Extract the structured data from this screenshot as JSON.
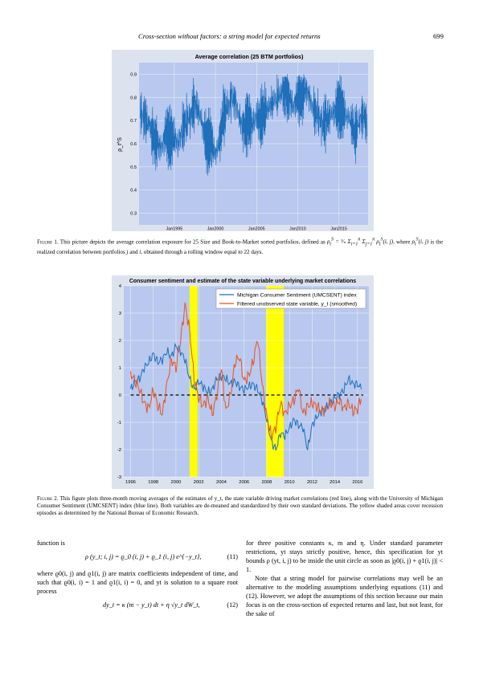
{
  "running_head": {
    "title": "Cross-section without factors: a string model for expected returns",
    "page": "699"
  },
  "chart_data": [
    {
      "type": "line",
      "title": "Average correlation (25 BTM portfolios)",
      "ylabel": "ρ_t^S",
      "ylim": [
        0.25,
        0.95
      ],
      "yticks": [
        "0.3",
        "0.4",
        "0.5",
        "0.6",
        "0.7",
        "0.8",
        "0.9"
      ],
      "xticks": [
        "Jan1995",
        "Jan2000",
        "Jan2005",
        "Jan2010",
        "Jan2015"
      ],
      "xlim": [
        1990.75,
        2018.6
      ],
      "grid": true,
      "colors": {
        "background": "#b8c8ee",
        "line": "#1f6fba"
      },
      "series": [
        {
          "x": [
            1990.9,
            1991.5,
            1992,
            1992.5,
            1993,
            1993.5,
            1994,
            1994.5,
            1995,
            1995.5,
            1996,
            1996.5,
            1997,
            1997.5,
            1998,
            1998.5,
            1999,
            1999.5,
            2000,
            2000.5,
            2001,
            2001.5,
            2002,
            2002.5,
            2003,
            2003.5,
            2004,
            2004.5,
            2005,
            2005.5,
            2006,
            2006.5,
            2007,
            2007.5,
            2008,
            2008.5,
            2009,
            2009.5,
            2010,
            2010.5,
            2011,
            2011.5,
            2012,
            2012.5,
            2013,
            2013.5,
            2014,
            2014.5,
            2015,
            2015.5,
            2016,
            2016.5,
            2017,
            2017.5,
            2018,
            2018.5
          ],
          "y": [
            0.74,
            0.7,
            0.68,
            0.62,
            0.6,
            0.58,
            0.65,
            0.62,
            0.63,
            0.6,
            0.66,
            0.7,
            0.72,
            0.78,
            0.74,
            0.68,
            0.6,
            0.62,
            0.55,
            0.6,
            0.72,
            0.75,
            0.8,
            0.78,
            0.7,
            0.66,
            0.7,
            0.68,
            0.72,
            0.7,
            0.74,
            0.76,
            0.78,
            0.8,
            0.82,
            0.84,
            0.8,
            0.76,
            0.8,
            0.82,
            0.84,
            0.8,
            0.74,
            0.72,
            0.68,
            0.7,
            0.72,
            0.74,
            0.76,
            0.74,
            0.72,
            0.7,
            0.64,
            0.7,
            0.73,
            0.68
          ]
        }
      ]
    },
    {
      "type": "line",
      "title": "Consumer sentiment and estimate of the state variable underlying market correlations",
      "ylim": [
        -3,
        4
      ],
      "yticks": [
        "-3",
        "-2",
        "-1",
        "0",
        "1",
        "2",
        "3",
        "4"
      ],
      "xlim": [
        1995.4,
        2017.0
      ],
      "xticks": [
        "1996",
        "1998",
        "2000",
        "2002",
        "2004",
        "2006",
        "2008",
        "2010",
        "2012",
        "2014",
        "2016"
      ],
      "grid": true,
      "legend": "top-right",
      "recessions": [
        [
          2001.2,
          2001.9
        ],
        [
          2007.95,
          2009.5
        ]
      ],
      "colors": {
        "background": "#b8c8ee",
        "recession": "#ffff00",
        "umcsent": "#1f6fba",
        "state": "#e8531f",
        "zero_line": "#000000"
      },
      "series": [
        {
          "name": "Michigan Consumer Sentiment (UMCSENT) index",
          "x": [
            1996,
            1996.4,
            1996.8,
            1997.2,
            1997.6,
            1998,
            1998.4,
            1998.8,
            1999.2,
            1999.6,
            2000,
            2000.4,
            2000.8,
            2001.2,
            2001.6,
            2002,
            2002.4,
            2002.8,
            2003.2,
            2003.6,
            2004,
            2004.4,
            2004.8,
            2005.2,
            2005.6,
            2006,
            2006.4,
            2006.8,
            2007.2,
            2007.6,
            2008,
            2008.4,
            2008.8,
            2009.2,
            2009.6,
            2010,
            2010.4,
            2010.8,
            2011.2,
            2011.6,
            2012,
            2012.4,
            2012.8,
            2013.2,
            2013.6,
            2014,
            2014.4,
            2014.8,
            2015.2,
            2015.6,
            2016,
            2016.4
          ],
          "y": [
            0.2,
            0.5,
            0.6,
            1.0,
            1.2,
            1.5,
            1.2,
            1.3,
            1.6,
            1.4,
            1.8,
            1.6,
            1.3,
            0.6,
            0.2,
            0.5,
            0.3,
            0.1,
            0.2,
            0.6,
            0.7,
            0.6,
            0.4,
            0.5,
            0.3,
            0.2,
            0.3,
            0.4,
            0.2,
            -0.2,
            -0.9,
            -1.7,
            -2.0,
            -1.4,
            -1.5,
            -1.2,
            -0.9,
            -1.1,
            -1.2,
            -2.0,
            -1.1,
            -0.8,
            -0.6,
            -0.5,
            -0.3,
            -0.1,
            0.0,
            0.2,
            0.6,
            0.4,
            0.4,
            0.2
          ]
        },
        {
          "name": "Filtered unobserved state variable, y_t (smoothed)",
          "x": [
            1996,
            1996.4,
            1996.8,
            1997.2,
            1997.6,
            1998,
            1998.4,
            1998.8,
            1999.2,
            1999.6,
            2000,
            2000.4,
            2000.8,
            2001.2,
            2001.6,
            2002,
            2002.4,
            2002.8,
            2003.2,
            2003.6,
            2004,
            2004.4,
            2004.8,
            2005.2,
            2005.6,
            2006,
            2006.4,
            2006.8,
            2007.2,
            2007.6,
            2008,
            2008.4,
            2008.8,
            2009.2,
            2009.6,
            2010,
            2010.4,
            2010.8,
            2011.2,
            2011.6,
            2012,
            2012.4,
            2012.8,
            2013.2,
            2013.6,
            2014,
            2014.4,
            2014.8,
            2015.2,
            2015.6,
            2016,
            2016.4
          ],
          "y": [
            0.8,
            0.5,
            0.2,
            -0.3,
            -0.5,
            0.2,
            -0.4,
            -0.7,
            0.4,
            1.3,
            1.0,
            2.0,
            3.3,
            2.4,
            0.6,
            -0.1,
            -0.4,
            -0.1,
            -0.7,
            0.0,
            1.0,
            -0.6,
            0.0,
            1.2,
            1.4,
            0.5,
            0.7,
            1.2,
            2.1,
            0.4,
            -0.8,
            -1.5,
            -1.2,
            -0.3,
            -0.7,
            -0.4,
            -0.2,
            0.3,
            -0.7,
            -0.4,
            -0.3,
            -0.4,
            -0.6,
            -0.5,
            -0.3,
            -0.4,
            -0.2,
            -0.5,
            -0.3,
            -0.6,
            -0.5,
            0.0
          ]
        }
      ]
    }
  ],
  "captions": {
    "fig1_label": "Figure 1.",
    "fig1_text_a": " This picture depicts the average correlation exposure for 25 Size and Book-to-Market sorted portfolios, defined as ",
    "fig1_text_b": ", where ",
    "fig1_text_c": " is the realized correlation between portfolios ",
    "fig1_text_d": " and ",
    "fig1_text_e": ", obtained through a rolling window equal to 22 days.",
    "fig2_label": "Figure 2.",
    "fig2_text": " This figure plots three-month moving averages of the estimates of y_t, the state variable driving market correlations (red line), along with the University of Michigan Consumer Sentiment (UMCSENT) index (blue line). Both variables are de-meaned and standardized by their own standard deviations. The yellow shaded areas cover recession episodes as determined by the National Bureau of Economic Research."
  },
  "body": {
    "left_p1": "function is",
    "eq11": "ρ (y_t; i, j) = ϱ_0 (i, j) + ϱ_1 (i, j) e^{−y_t},",
    "eq11_num": "(11)",
    "left_p2": "where ϱ0(i, j) and ϱ1(i, j) are matrix coefficients independent of time, and such that ϱ0(i, i) = 1 and ϱ1(i, i) = 0, and yt is solution to a square root process",
    "eq12": "dy_t = κ (m − y_t) dt + η √y_t dW_t,",
    "eq12_num": "(12)",
    "right_p1": "for three positive constants κ, m and η. Under standard parameter restrictions, yt stays strictly positive, hence, this specification for yt bounds ρ (yt, i, j) to be inside the unit circle as soon as |ϱ0(i, j) + ϱ1(i, j)| < 1.",
    "right_p2": "Note that a string model for pairwise correlations may well be an alternative to the modeling assumptions underlying equations (11) and (12). However, we adopt the assumptions of this section because our main focus is on the cross-section of expected returns and last, but not least, for the sake of"
  }
}
